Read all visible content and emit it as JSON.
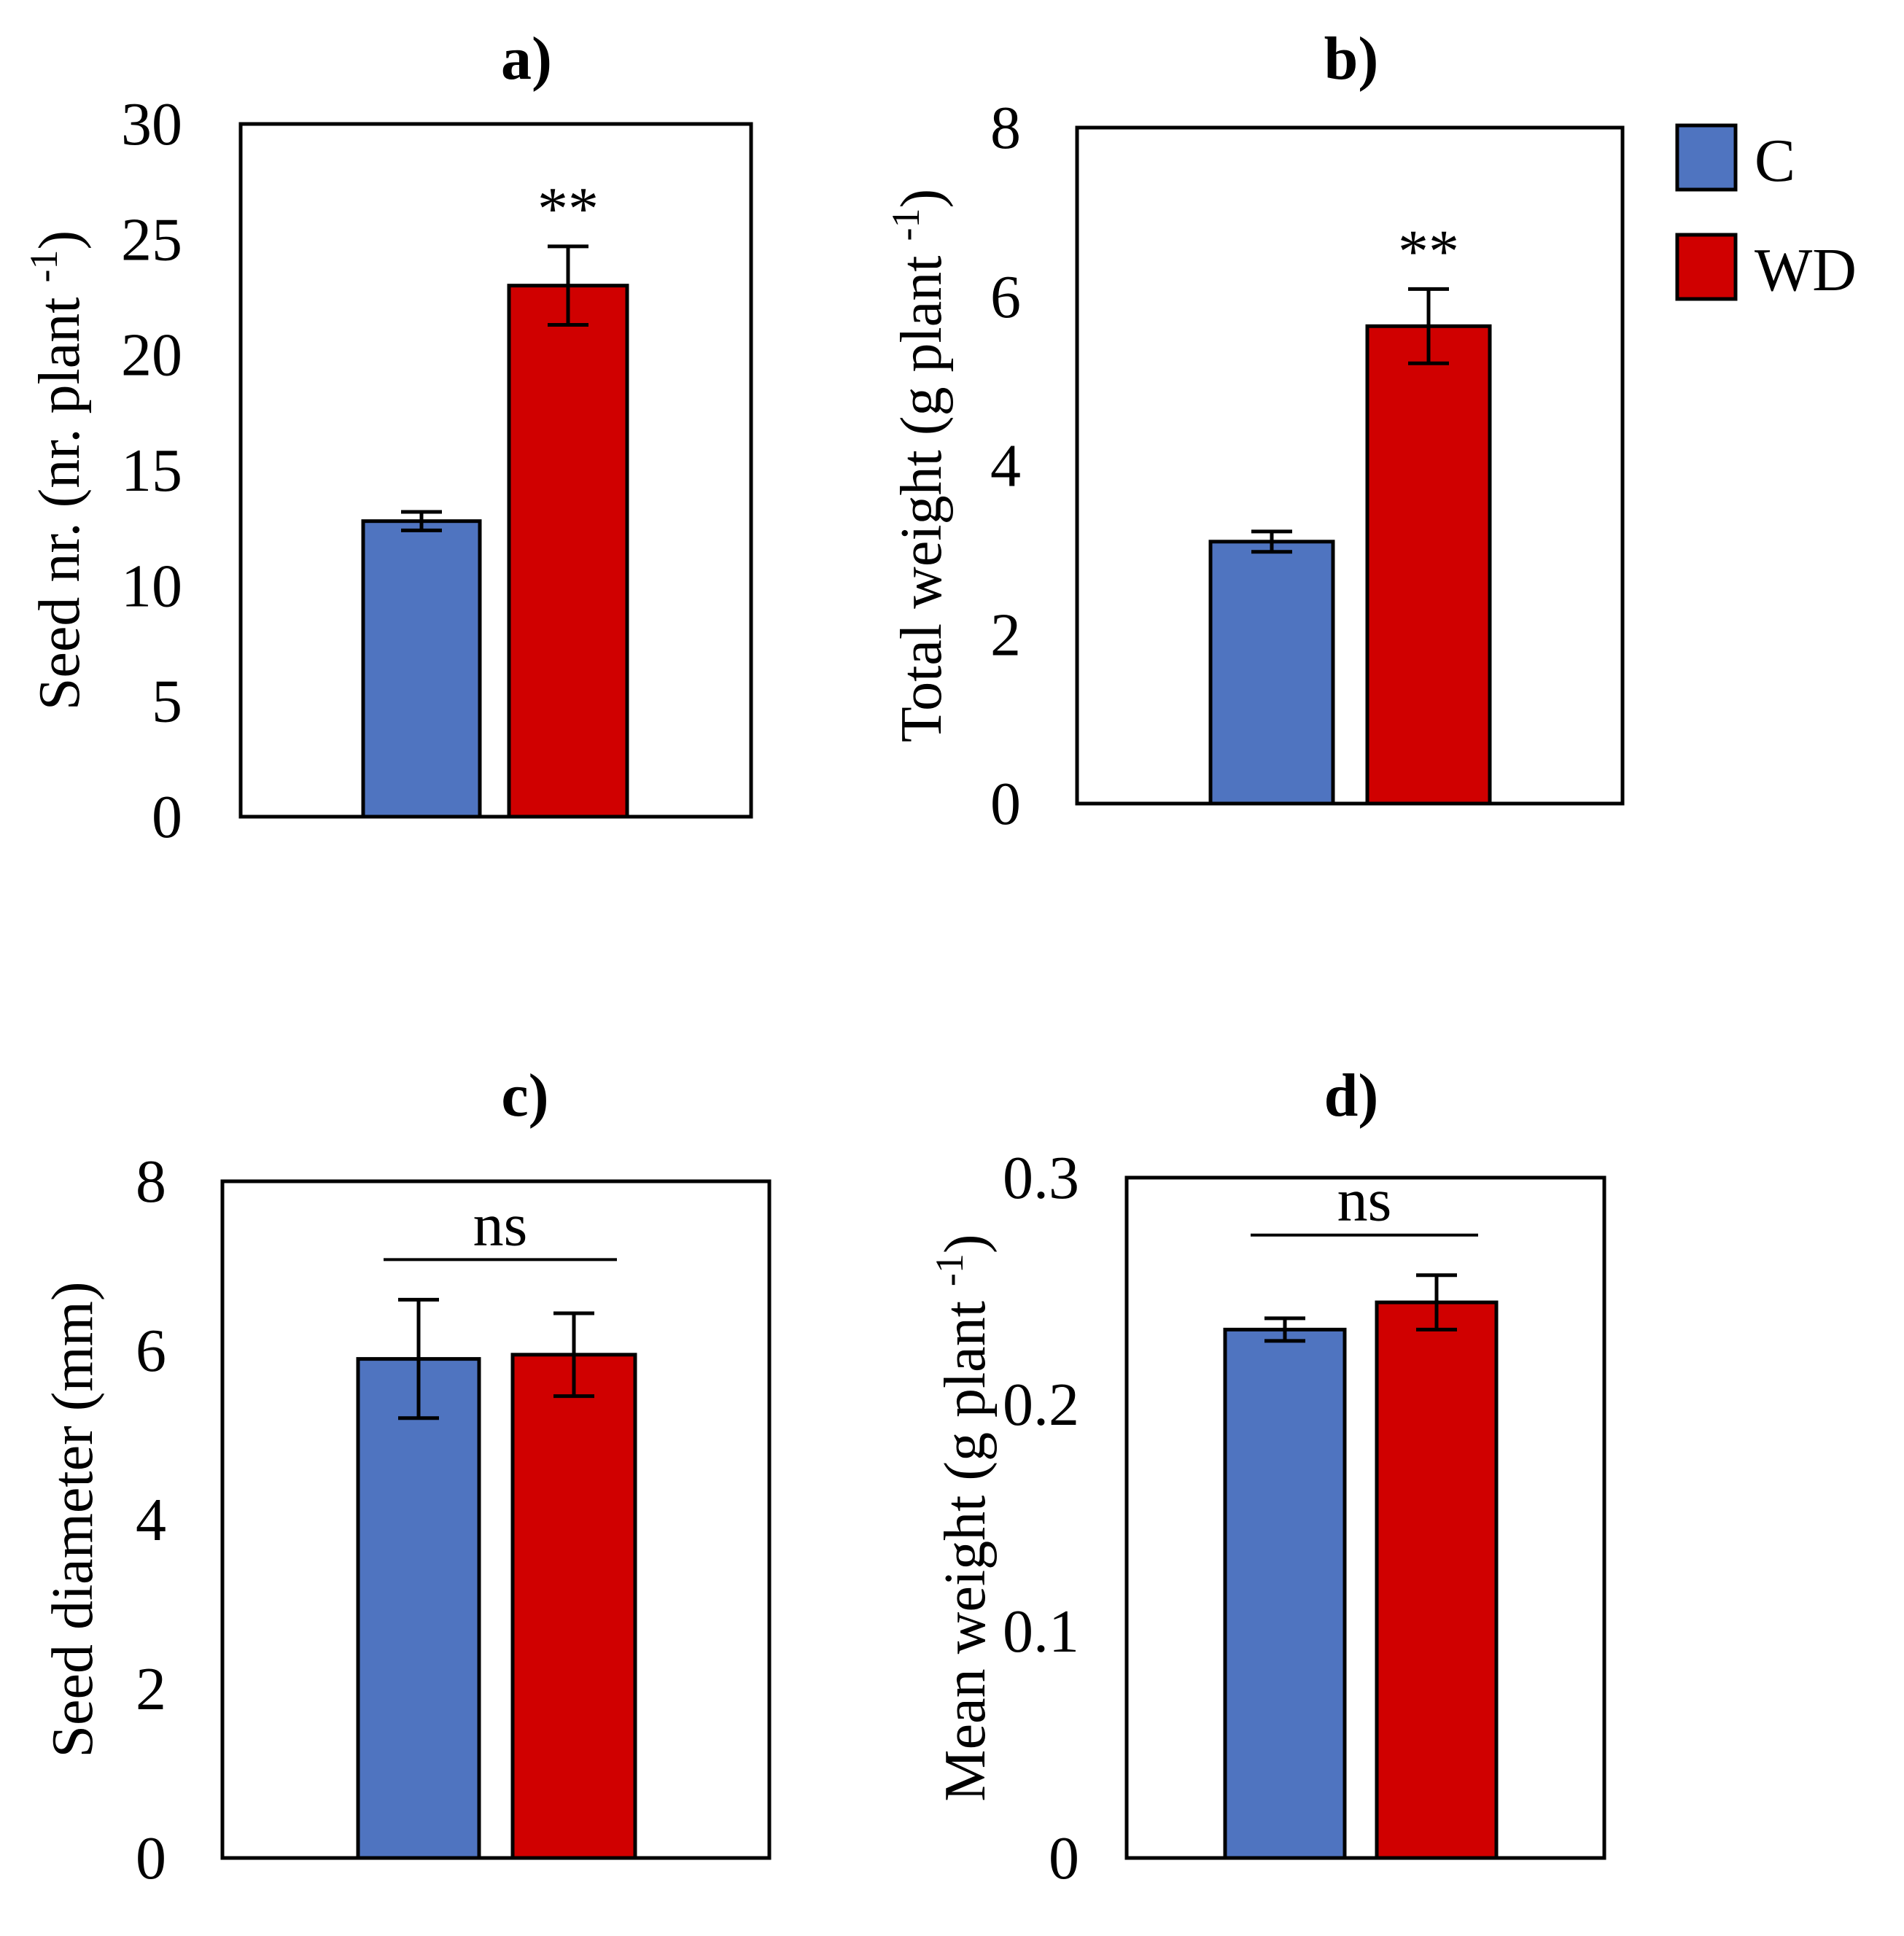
{
  "legend": {
    "items": [
      {
        "label": "C",
        "color": "#4F74C0"
      },
      {
        "label": "WD",
        "color": "#D00000"
      }
    ]
  },
  "chart_data": [
    {
      "type": "bar",
      "title": "a)",
      "ylabel": "Seed nr. (nr. plant ",
      "ylabel_sup": "-1",
      "ylabel_end": ")",
      "ylim": [
        0,
        30
      ],
      "yticks": [
        0,
        5,
        10,
        15,
        20,
        25,
        30
      ],
      "ytick_labels": [
        "0",
        "5",
        "10",
        "15",
        "20",
        "25",
        "30"
      ],
      "series": [
        {
          "name": "C",
          "value": 12.8,
          "error": 0.4,
          "color": "#4F74C0"
        },
        {
          "name": "WD",
          "value": 23.0,
          "error": 1.7,
          "color": "#D00000"
        }
      ],
      "annotation": {
        "text": "**",
        "kind": "asterisks"
      }
    },
    {
      "type": "bar",
      "title": "b)",
      "ylabel": "Total weight (g plant ",
      "ylabel_sup": "-1",
      "ylabel_end": ")",
      "ylim": [
        0,
        8
      ],
      "yticks": [
        0,
        2,
        4,
        6,
        8
      ],
      "ytick_labels": [
        "0",
        "2",
        "4",
        "6",
        "8"
      ],
      "series": [
        {
          "name": "C",
          "value": 3.1,
          "error": 0.12,
          "color": "#4F74C0"
        },
        {
          "name": "WD",
          "value": 5.65,
          "error": 0.44,
          "color": "#D00000"
        }
      ],
      "annotation": {
        "text": "**",
        "kind": "asterisks"
      }
    },
    {
      "type": "bar",
      "title": "c)",
      "ylabel": "Seed diameter (mm)",
      "ylabel_sup": "",
      "ylabel_end": "",
      "ylim": [
        0,
        8
      ],
      "yticks": [
        0,
        2,
        4,
        6,
        8
      ],
      "ytick_labels": [
        "0",
        "2",
        "4",
        "6",
        "8"
      ],
      "series": [
        {
          "name": "C",
          "value": 5.9,
          "error": 0.7,
          "color": "#4F74C0"
        },
        {
          "name": "WD",
          "value": 5.95,
          "error": 0.49,
          "color": "#D00000"
        }
      ],
      "annotation": {
        "text": "ns",
        "kind": "ns"
      }
    },
    {
      "type": "bar",
      "title": "d)",
      "ylabel": "Mean weight (g plant ",
      "ylabel_sup": "-1",
      "ylabel_end": ")",
      "ylim": [
        0,
        0.3
      ],
      "yticks": [
        0,
        0.1,
        0.2,
        0.3
      ],
      "ytick_labels": [
        "0",
        "0.1",
        "0.2",
        "0.3"
      ],
      "series": [
        {
          "name": "C",
          "value": 0.233,
          "error": 0.005,
          "color": "#4F74C0"
        },
        {
          "name": "WD",
          "value": 0.245,
          "error": 0.012,
          "color": "#D00000"
        }
      ],
      "annotation": {
        "text": "ns",
        "kind": "ns"
      }
    }
  ]
}
